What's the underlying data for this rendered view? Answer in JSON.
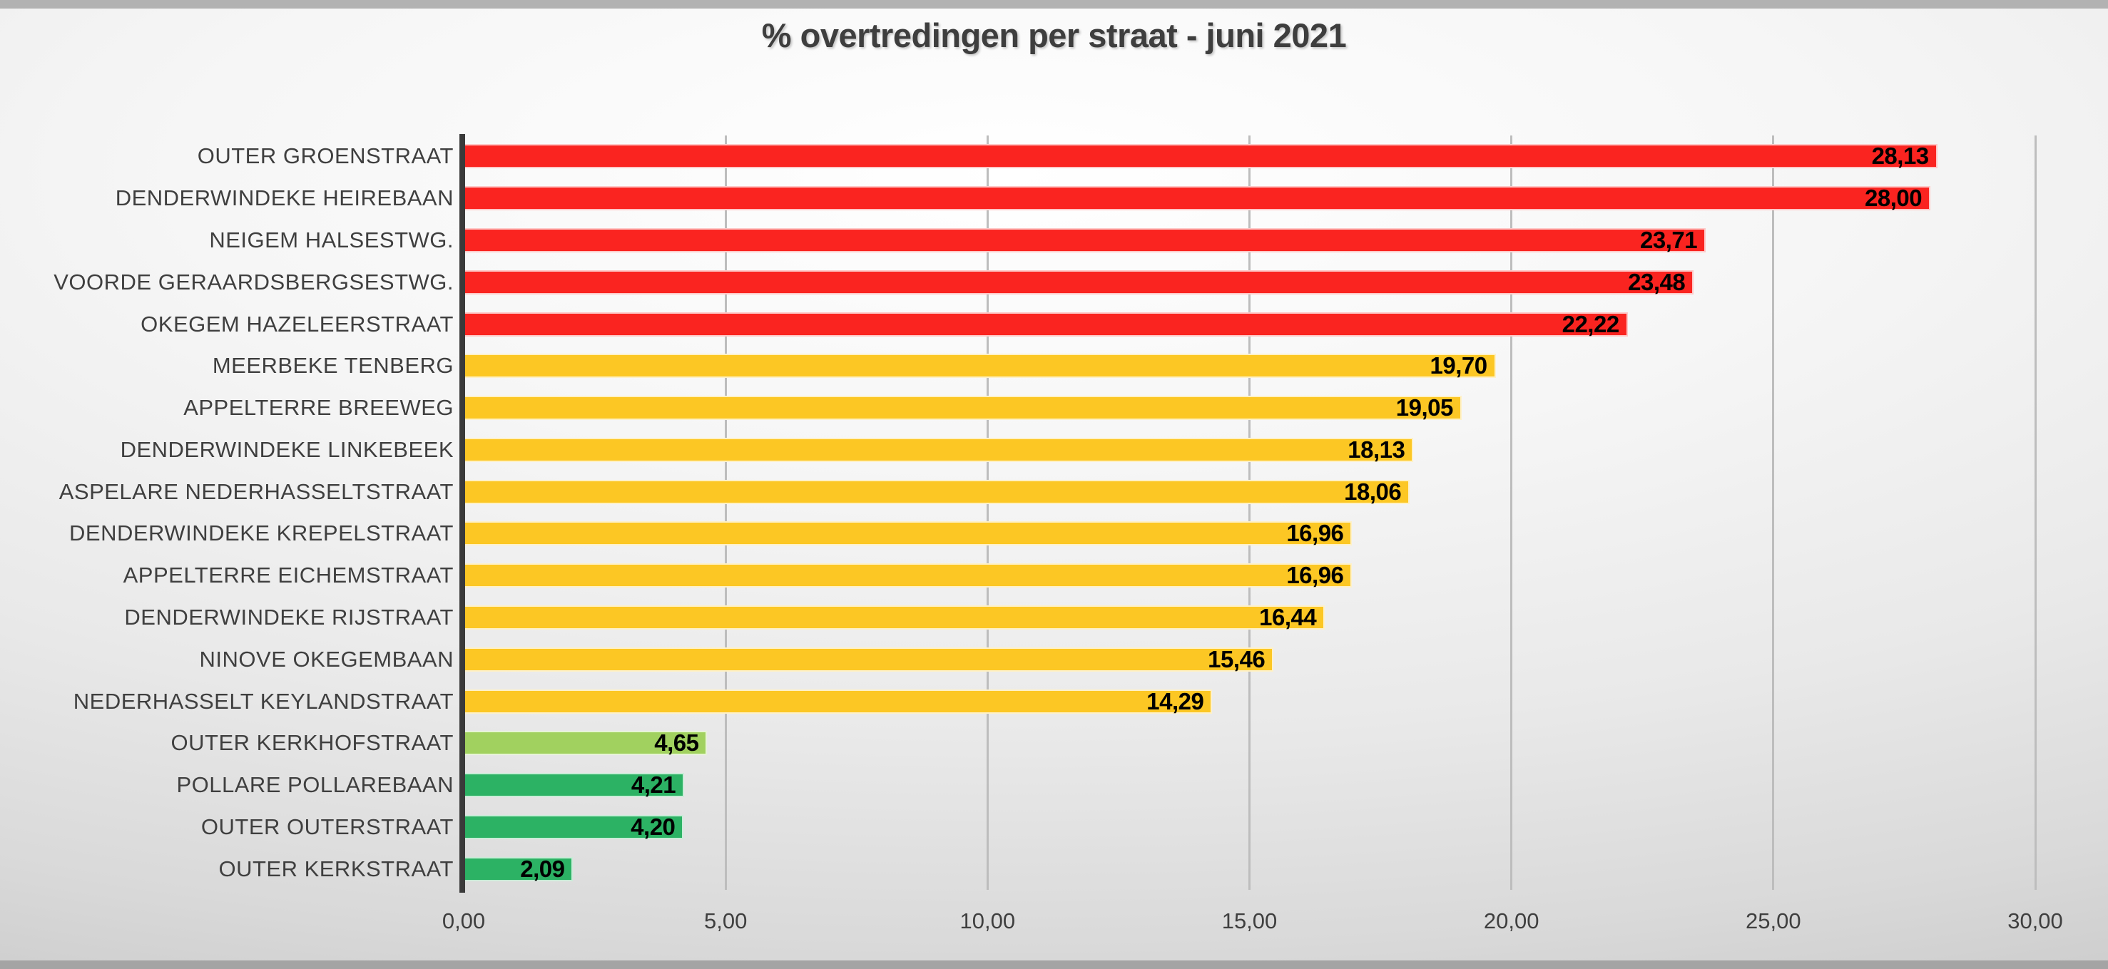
{
  "chart_data": {
    "type": "bar",
    "orientation": "horizontal",
    "title": "% overtredingen per straat - juni 2021",
    "xlabel": "",
    "ylabel": "",
    "xlim": [
      0,
      30
    ],
    "x_tick_values": [
      0,
      5,
      10,
      15,
      20,
      25,
      30
    ],
    "x_tick_labels": [
      "0,00",
      "5,00",
      "10,00",
      "15,00",
      "20,00",
      "25,00",
      "30,00"
    ],
    "grid": true,
    "legend": false,
    "value_label_position": "inside-end",
    "categories": [
      "OUTER GROENSTRAAT",
      "DENDERWINDEKE HEIREBAAN",
      "NEIGEM HALSESTWG.",
      "VOORDE GERAARDSBERGSESTWG.",
      "OKEGEM HAZELEERSTRAAT",
      "MEERBEKE TENBERG",
      "APPELTERRE BREEWEG",
      "DENDERWINDEKE LINKEBEEK",
      "ASPELARE NEDERHASSELTSTRAAT",
      "DENDERWINDEKE KREPELSTRAAT",
      "APPELTERRE EICHEMSTRAAT",
      "DENDERWINDEKE RIJSTRAAT",
      "NINOVE OKEGEMBAAN",
      "NEDERHASSELT KEYLANDSTRAAT",
      "OUTER KERKHOFSTRAAT",
      "POLLARE POLLAREBAAN",
      "OUTER OUTERSTRAAT",
      "OUTER KERKSTRAAT"
    ],
    "values": [
      28.13,
      28.0,
      23.71,
      23.48,
      22.22,
      19.7,
      19.05,
      18.13,
      18.06,
      16.96,
      16.96,
      16.44,
      15.46,
      14.29,
      4.65,
      4.21,
      4.2,
      2.09
    ],
    "value_labels": [
      "28,13",
      "28,00",
      "23,71",
      "23,48",
      "22,22",
      "19,70",
      "19,05",
      "18,13",
      "18,06",
      "16,96",
      "16,96",
      "16,44",
      "15,46",
      "14,29",
      "4,65",
      "4,21",
      "4,20",
      "2,09"
    ],
    "bar_colors": [
      "red",
      "red",
      "red",
      "red",
      "red",
      "yellow",
      "yellow",
      "yellow",
      "yellow",
      "yellow",
      "yellow",
      "yellow",
      "yellow",
      "yellow",
      "light_green",
      "green",
      "green",
      "green"
    ]
  },
  "colors": {
    "red": "#fa2420",
    "yellow": "#fcc724",
    "light_green": "#a1d15f",
    "green": "#2cb264",
    "axis_line": "#3a3a3a",
    "gridline": "#bdbdbd",
    "title_text": "#3e3e3e",
    "label_text": "#3f3f3f",
    "value_text": "#000000",
    "frame_top": "#b2b2b2",
    "frame_bottom": "#a4a4a4"
  }
}
